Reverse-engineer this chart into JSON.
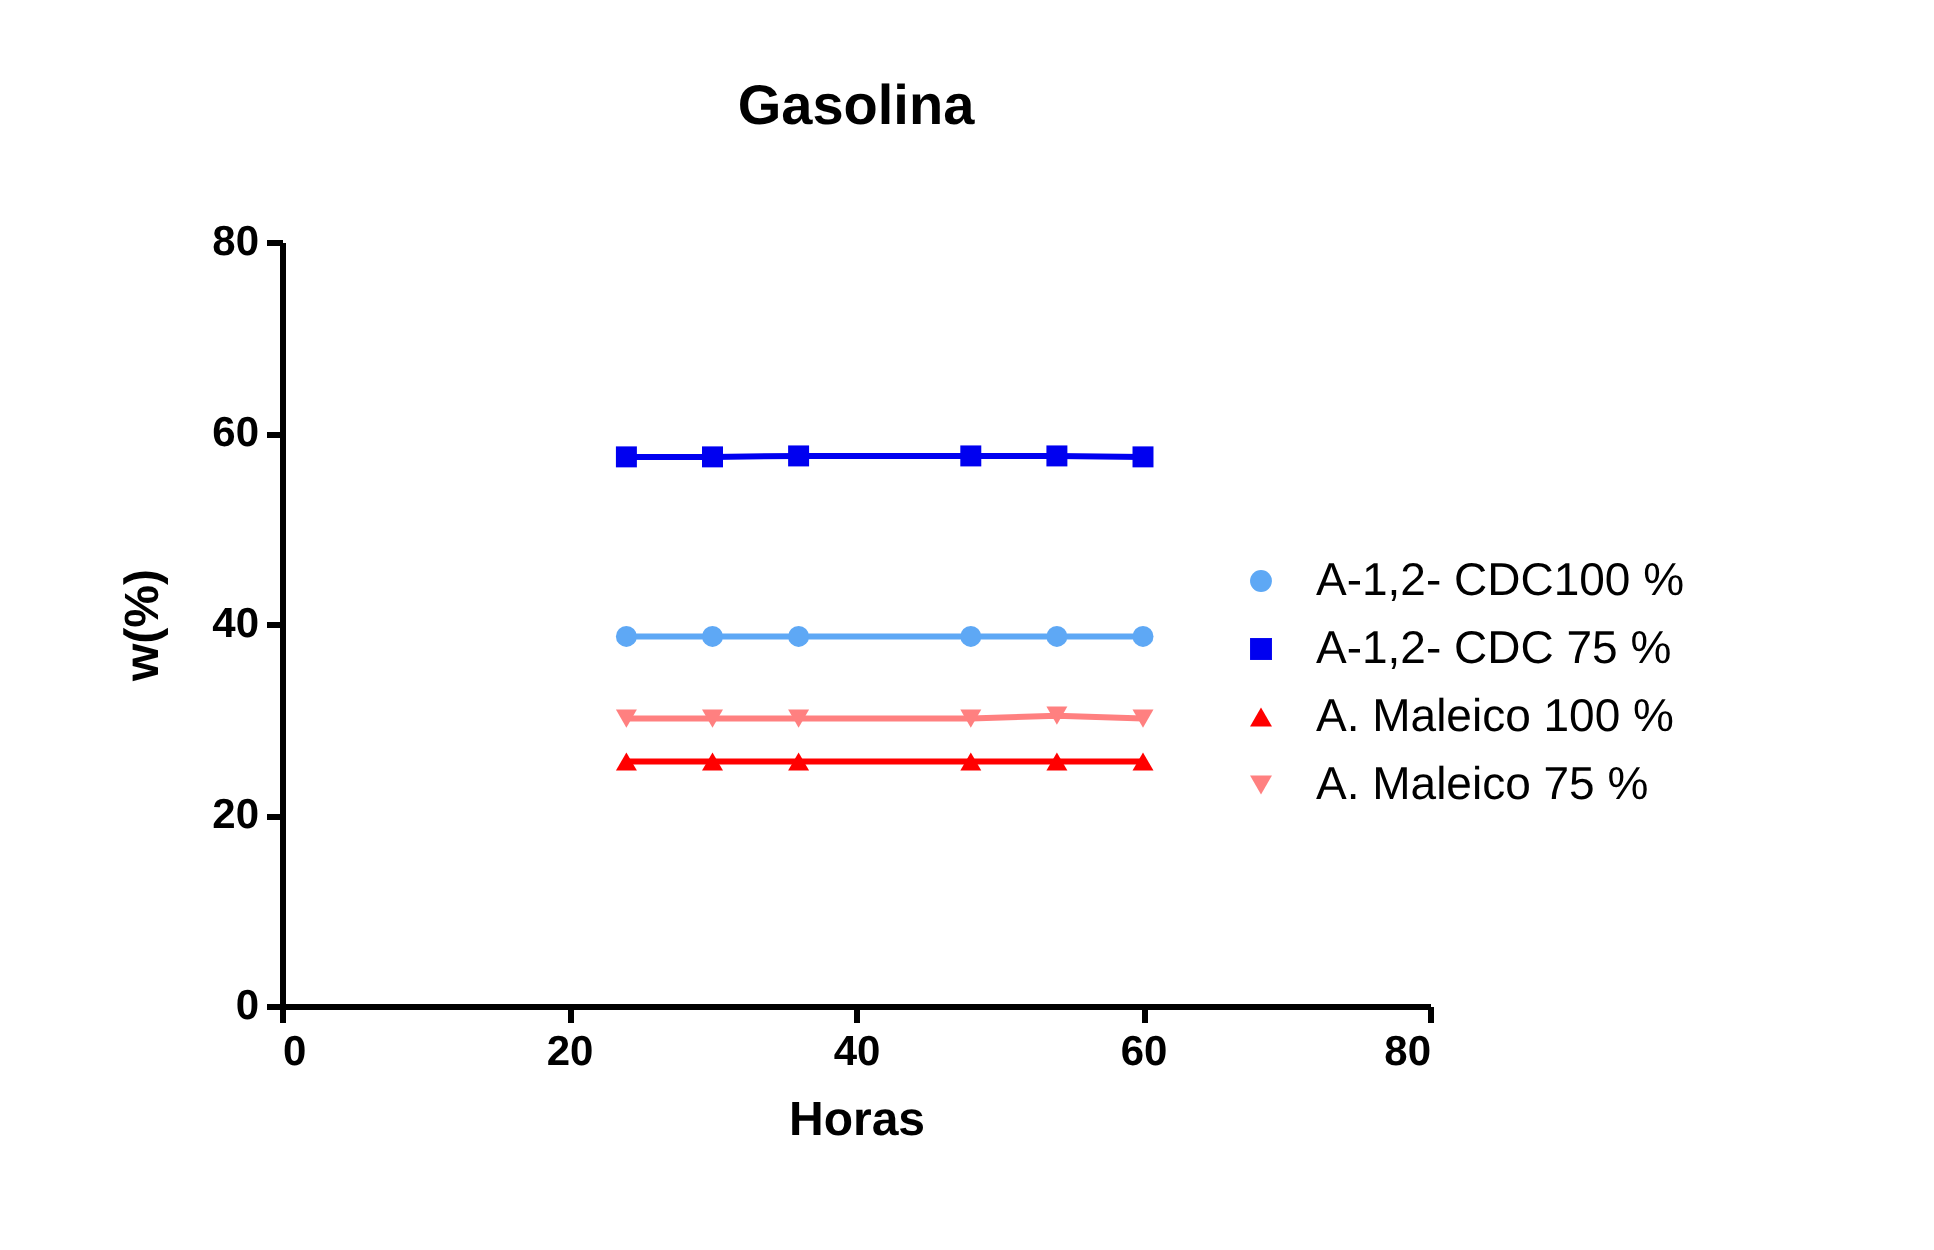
{
  "chart_data": {
    "type": "line",
    "title": "Gasolina",
    "xlabel": "Horas",
    "ylabel": "w(%)",
    "x": [
      24,
      30,
      36,
      48,
      54,
      60
    ],
    "series": [
      {
        "name": "A-1,2- CDC100 %",
        "color": "#5ea8f5",
        "marker": "circle",
        "values": [
          38.7,
          38.7,
          38.7,
          38.7,
          38.7,
          38.7
        ]
      },
      {
        "name": "A-1,2- CDC 75 %",
        "color": "#0000f0",
        "marker": "square",
        "values": [
          57.5,
          57.5,
          57.6,
          57.6,
          57.6,
          57.5
        ]
      },
      {
        "name": "A. Maleico 100 %",
        "color": "#ff0000",
        "marker": "triangle",
        "values": [
          25.6,
          25.6,
          25.6,
          25.6,
          25.6,
          25.6
        ]
      },
      {
        "name": "A. Maleico 75 %",
        "color": "#ff8080",
        "marker": "triangle-down",
        "values": [
          30.1,
          30.1,
          30.1,
          30.1,
          30.4,
          30.1
        ]
      }
    ],
    "xlim": [
      0,
      80
    ],
    "ylim": [
      0,
      80
    ],
    "xticks": [
      0,
      20,
      40,
      60,
      80
    ],
    "yticks": [
      0,
      20,
      40,
      60,
      80
    ],
    "legend": "right",
    "line_style": "solid"
  }
}
